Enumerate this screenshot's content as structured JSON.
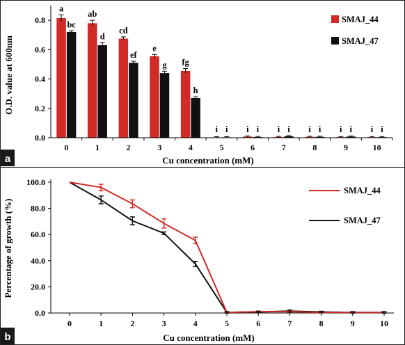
{
  "chart_data": [
    {
      "panel": "a",
      "type": "bar",
      "xlabel": "Cu concentration (mM)",
      "ylabel": "O.D. value at 600nm",
      "ylim": [
        0,
        0.9
      ],
      "yticks": [
        "0.0",
        "0.2",
        "0.4",
        "0.6",
        "0.8"
      ],
      "categories": [
        "0",
        "1",
        "2",
        "3",
        "4",
        "5",
        "6",
        "7",
        "8",
        "9",
        "10"
      ],
      "legend_position": "top-right",
      "series": [
        {
          "name": "SMAJ_44",
          "color": "#d12b27",
          "values": [
            0.815,
            0.78,
            0.675,
            0.555,
            0.455,
            0.003,
            0.008,
            0.005,
            0.006,
            0.004,
            0.004
          ],
          "errors": [
            0.022,
            0.02,
            0.012,
            0.012,
            0.016,
            0.004,
            0.004,
            0.004,
            0.004,
            0.004,
            0.004
          ],
          "letters": [
            "a",
            "ab",
            "cd",
            "e",
            "fg",
            "i",
            "i",
            "i",
            "i",
            "i",
            "i"
          ]
        },
        {
          "name": "SMAJ_47",
          "color": "#111111",
          "values": [
            0.72,
            0.63,
            0.51,
            0.44,
            0.27,
            0.003,
            0.005,
            0.01,
            0.006,
            0.008,
            0.004
          ],
          "errors": [
            0.008,
            0.016,
            0.011,
            0.013,
            0.009,
            0.004,
            0.004,
            0.004,
            0.004,
            0.004,
            0.004
          ],
          "letters": [
            "bc",
            "d",
            "ef",
            "g",
            "h",
            "i",
            "i",
            "i",
            "i",
            "i",
            "i"
          ]
        }
      ]
    },
    {
      "panel": "b",
      "type": "line",
      "xlabel": "Cu concentration (mM)",
      "ylabel": "Percentage of growth (%)",
      "ylim": [
        0,
        100
      ],
      "yticks": [
        "0.0",
        "20.0",
        "40.0",
        "60.0",
        "80.0",
        "100.0"
      ],
      "categories": [
        "0",
        "1",
        "2",
        "3",
        "4",
        "5",
        "6",
        "7",
        "8",
        "9",
        "10"
      ],
      "legend_position": "right",
      "series": [
        {
          "name": "SMAJ_44",
          "color": "#d12b27",
          "values": [
            100,
            96,
            83.5,
            68.5,
            55.5,
            0.5,
            1,
            1,
            0.5,
            0.5,
            0.5
          ],
          "errors": [
            0,
            2.5,
            3,
            3.5,
            2.5,
            0.5,
            0.5,
            0.5,
            0.5,
            0.5,
            0.5
          ]
        },
        {
          "name": "SMAJ_47",
          "color": "#111111",
          "values": [
            100,
            86.5,
            70.5,
            61,
            37.5,
            0.5,
            0.8,
            1.5,
            0.8,
            0.5,
            0.5
          ],
          "errors": [
            0,
            3,
            3,
            1,
            2,
            0.5,
            0.5,
            0.8,
            0.5,
            0.5,
            0.5
          ]
        }
      ]
    }
  ],
  "panel_tags": [
    "a",
    "b"
  ]
}
